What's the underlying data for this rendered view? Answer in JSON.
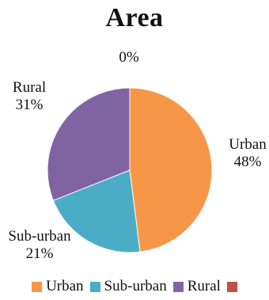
{
  "chart_data": {
    "type": "pie",
    "title": "Area",
    "slices": [
      {
        "label": "Urban",
        "value": 48,
        "value_label": "48%",
        "color": "#f79646"
      },
      {
        "label": "Sub-urban",
        "value": 21,
        "value_label": "21%",
        "color": "#4bacc6"
      },
      {
        "label": "Rural",
        "value": 31,
        "value_label": "31%",
        "color": "#8064a2"
      },
      {
        "label": "",
        "value": 0,
        "value_label": "0%",
        "color": "#c0504d"
      }
    ],
    "legend_position": "bottom"
  }
}
